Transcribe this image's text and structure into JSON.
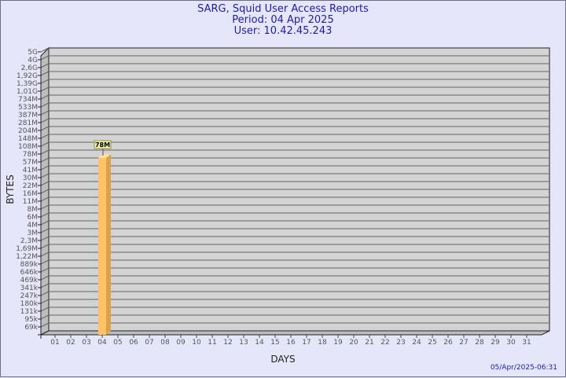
{
  "header": {
    "title": "SARG, Squid User Access Reports",
    "period": "Period: 04 Apr 2025",
    "user": "User: 10.42.45.243"
  },
  "footer": {
    "generated": "05/Apr/2025-06:31"
  },
  "colors": {
    "title": "#1c1ca8",
    "bar": "#ffc266",
    "bar_side": "#dba14c",
    "wall": "#d3d3d3",
    "background": "#e6e6fa"
  },
  "chart_data": {
    "type": "bar",
    "title": "SARG, Squid User Access Reports",
    "xlabel": "DAYS",
    "ylabel": "BYTES",
    "y_scale": "log",
    "grid": true,
    "y_ticks": [
      "5G",
      "4G",
      "2,6G",
      "1,92G",
      "1,39G",
      "1,01G",
      "734M",
      "533M",
      "387M",
      "281M",
      "204M",
      "148M",
      "108M",
      "78M",
      "57M",
      "41M",
      "30M",
      "22M",
      "16M",
      "11M",
      "8M",
      "6M",
      "4M",
      "3M",
      "2,3M",
      "1,69M",
      "1,22M",
      "889k",
      "646k",
      "469k",
      "341k",
      "247k",
      "180k",
      "131k",
      "95k",
      "69k"
    ],
    "categories": [
      "01",
      "02",
      "03",
      "04",
      "05",
      "06",
      "07",
      "08",
      "09",
      "10",
      "11",
      "12",
      "13",
      "14",
      "15",
      "16",
      "17",
      "18",
      "19",
      "20",
      "21",
      "22",
      "23",
      "24",
      "25",
      "26",
      "27",
      "28",
      "29",
      "30",
      "31"
    ],
    "bars": [
      {
        "day": "04",
        "value": "78M"
      }
    ]
  }
}
